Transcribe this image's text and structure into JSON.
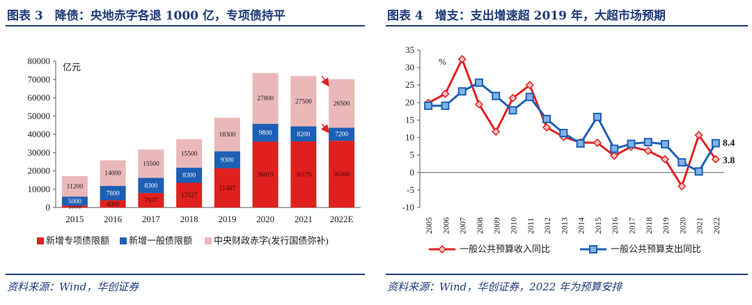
{
  "left": {
    "title": "图表 3　降债：央地赤字各退 1000 亿，专项债持平",
    "source": "资料来源：Wind，华创证券"
  },
  "right": {
    "title": "图表 4　增支：支出增速超 2019 年，大超市场预期",
    "source": "资料来源：Wind，华创证券，2022 年为预算安排"
  },
  "chart_data": [
    {
      "type": "bar",
      "stacked": true,
      "unit_label": "亿元",
      "categories": [
        "2015",
        "2016",
        "2017",
        "2018",
        "2019",
        "2020",
        "2021",
        "2022E"
      ],
      "ylim": [
        0,
        80000
      ],
      "yticks": [
        "0",
        "10000",
        "20000",
        "30000",
        "40000",
        "50000",
        "60000",
        "70000",
        "80000"
      ],
      "series": [
        {
          "name": "新增专项债限额",
          "color": "#e0201e",
          "values": [
            1000,
            4000,
            7937,
            13527,
            21487,
            36019,
            36176,
            36500
          ],
          "labels": [
            "1000",
            "4000",
            "7937",
            "13527",
            "21487",
            "36019",
            "36176",
            "36500"
          ]
        },
        {
          "name": "新增一般债限额",
          "color": "#1c5fb4",
          "values": [
            5000,
            7800,
            8300,
            8300,
            9300,
            9800,
            8200,
            7200
          ],
          "labels": [
            "5000",
            "7800",
            "8300",
            "8300",
            "9300",
            "9800",
            "8200",
            "7200"
          ]
        },
        {
          "name": "中央财政赤字(发行国债弥补)",
          "color": "#eab8b8",
          "values": [
            11200,
            14000,
            15500,
            15500,
            18300,
            27800,
            27500,
            26500
          ],
          "labels": [
            "11200",
            "14000",
            "15500",
            "15500",
            "18300",
            "27800",
            "27500",
            "26500"
          ]
        }
      ],
      "legend": "bottom"
    },
    {
      "type": "line",
      "unit_label": "%",
      "x": [
        "2005",
        "2006",
        "2007",
        "2008",
        "2009",
        "2010",
        "2011",
        "2012",
        "2013",
        "2014",
        "2015",
        "2016",
        "2017",
        "2018",
        "2019",
        "2020",
        "2021",
        "2022"
      ],
      "ylim": [
        -10,
        35
      ],
      "yticks": [
        "-10",
        "-5",
        "0",
        "5",
        "10",
        "15",
        "20",
        "25",
        "30",
        "35"
      ],
      "series": [
        {
          "name": "一般公共预算收入同比",
          "color": "#e0201e",
          "marker": "diamond",
          "values": [
            19.9,
            22.5,
            32.4,
            19.5,
            11.7,
            21.3,
            25.0,
            12.9,
            10.2,
            8.6,
            8.5,
            4.8,
            7.4,
            6.2,
            3.8,
            -3.9,
            10.7,
            3.8
          ]
        },
        {
          "name": "一般公共预算支出同比",
          "color": "#1c5fb4",
          "marker": "square",
          "values": [
            19.1,
            19.1,
            23.2,
            25.7,
            21.9,
            17.8,
            21.6,
            15.3,
            11.3,
            8.3,
            15.9,
            6.8,
            8.2,
            8.7,
            8.1,
            2.9,
            0.3,
            8.4
          ]
        }
      ],
      "end_labels": [
        "8.4",
        "3.8"
      ],
      "legend": "bottom"
    }
  ]
}
